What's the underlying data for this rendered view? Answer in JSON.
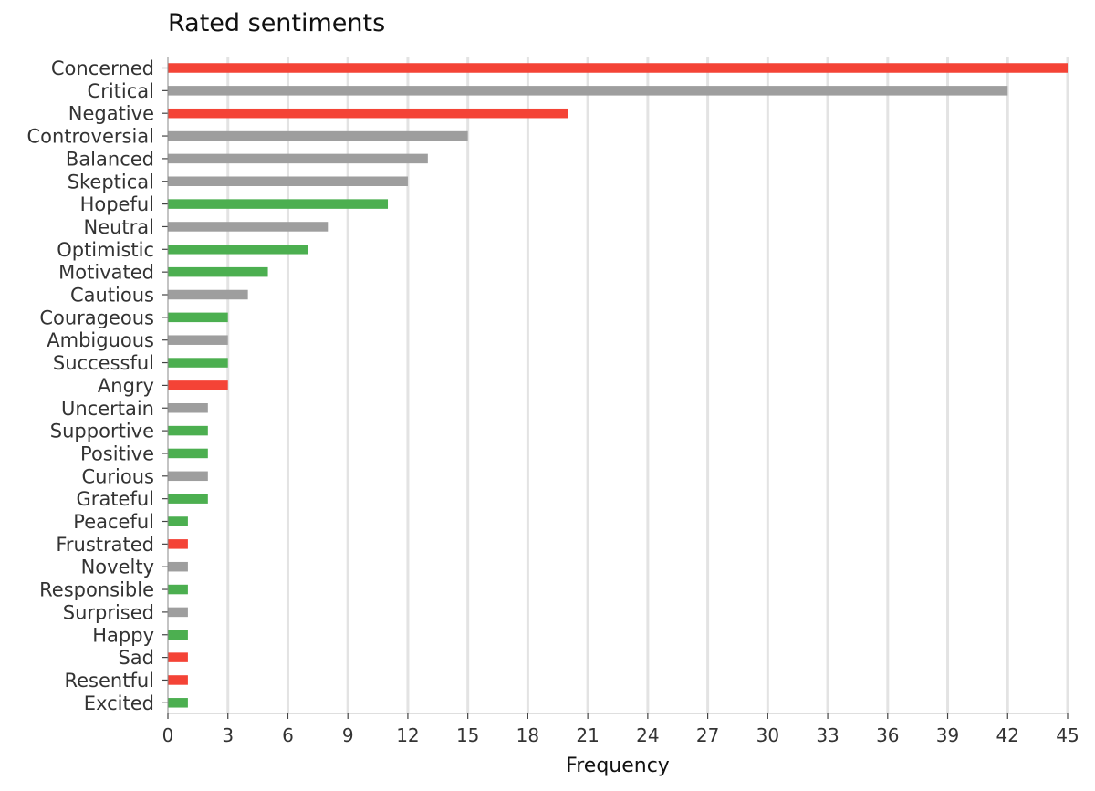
{
  "chart_data": {
    "type": "bar",
    "orientation": "horizontal",
    "title": "Rated sentiments",
    "xlabel": "Frequency",
    "ylabel": "",
    "xlim": [
      0,
      45
    ],
    "xticks": [
      0,
      3,
      6,
      9,
      12,
      15,
      18,
      21,
      24,
      27,
      30,
      33,
      36,
      39,
      42,
      45
    ],
    "grid": "vertical",
    "legend": "none",
    "colors": {
      "positive": "#4caf50",
      "neutral": "#9e9e9e",
      "negative": "#f44336"
    },
    "bars": [
      {
        "label": "Concerned",
        "value": 45,
        "sentiment": "negative"
      },
      {
        "label": "Critical",
        "value": 42,
        "sentiment": "neutral"
      },
      {
        "label": "Negative",
        "value": 20,
        "sentiment": "negative"
      },
      {
        "label": "Controversial",
        "value": 15,
        "sentiment": "neutral"
      },
      {
        "label": "Balanced",
        "value": 13,
        "sentiment": "neutral"
      },
      {
        "label": "Skeptical",
        "value": 12,
        "sentiment": "neutral"
      },
      {
        "label": "Hopeful",
        "value": 11,
        "sentiment": "positive"
      },
      {
        "label": "Neutral",
        "value": 8,
        "sentiment": "neutral"
      },
      {
        "label": "Optimistic",
        "value": 7,
        "sentiment": "positive"
      },
      {
        "label": "Motivated",
        "value": 5,
        "sentiment": "positive"
      },
      {
        "label": "Cautious",
        "value": 4,
        "sentiment": "neutral"
      },
      {
        "label": "Courageous",
        "value": 3,
        "sentiment": "positive"
      },
      {
        "label": "Ambiguous",
        "value": 3,
        "sentiment": "neutral"
      },
      {
        "label": "Successful",
        "value": 3,
        "sentiment": "positive"
      },
      {
        "label": "Angry",
        "value": 3,
        "sentiment": "negative"
      },
      {
        "label": "Uncertain",
        "value": 2,
        "sentiment": "neutral"
      },
      {
        "label": "Supportive",
        "value": 2,
        "sentiment": "positive"
      },
      {
        "label": "Positive",
        "value": 2,
        "sentiment": "positive"
      },
      {
        "label": "Curious",
        "value": 2,
        "sentiment": "neutral"
      },
      {
        "label": "Grateful",
        "value": 2,
        "sentiment": "positive"
      },
      {
        "label": "Peaceful",
        "value": 1,
        "sentiment": "positive"
      },
      {
        "label": "Frustrated",
        "value": 1,
        "sentiment": "negative"
      },
      {
        "label": "Novelty",
        "value": 1,
        "sentiment": "neutral"
      },
      {
        "label": "Responsible",
        "value": 1,
        "sentiment": "positive"
      },
      {
        "label": "Surprised",
        "value": 1,
        "sentiment": "neutral"
      },
      {
        "label": "Happy",
        "value": 1,
        "sentiment": "positive"
      },
      {
        "label": "Sad",
        "value": 1,
        "sentiment": "negative"
      },
      {
        "label": "Resentful",
        "value": 1,
        "sentiment": "negative"
      },
      {
        "label": "Excited",
        "value": 1,
        "sentiment": "positive"
      }
    ]
  }
}
